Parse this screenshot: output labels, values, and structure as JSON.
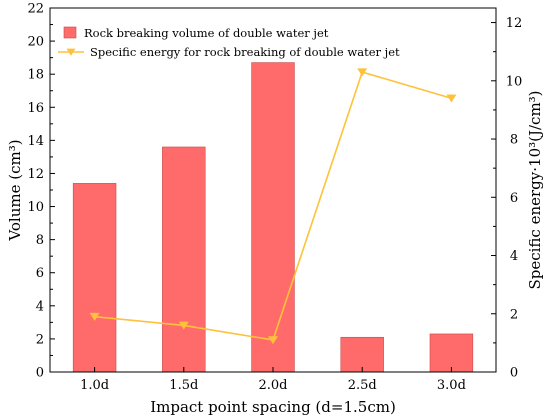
{
  "chart_data": {
    "type": "bar",
    "categories": [
      "1.0d",
      "1.5d",
      "2.0d",
      "2.5d",
      "3.0d"
    ],
    "series": [
      {
        "name": "Rock breaking volume of double water jet",
        "type": "bar",
        "axis": "left",
        "color": "#FF6B6B",
        "values": [
          11.4,
          13.6,
          18.7,
          2.1,
          2.3
        ]
      },
      {
        "name": "Specific energy for rock breaking of double water jet",
        "type": "line",
        "axis": "right",
        "marker": "triangle-down",
        "color": "#FFC13B",
        "values": [
          1.9,
          1.6,
          1.1,
          10.3,
          9.4
        ]
      }
    ],
    "xlabel": "Impact point spacing (d=1.5cm)",
    "ylabel_left": "Volume (cm³)",
    "ylabel_right": "Specific energy·10³(J/cm³)",
    "ylim_left": [
      0,
      22
    ],
    "yticks_left": [
      0,
      2,
      4,
      6,
      8,
      10,
      12,
      14,
      16,
      18,
      20,
      22
    ],
    "ylim_right": [
      0,
      12.5
    ],
    "yticks_right": [
      0,
      2,
      4,
      6,
      8,
      10,
      12
    ],
    "grid": false,
    "legend_position": "top-left"
  }
}
